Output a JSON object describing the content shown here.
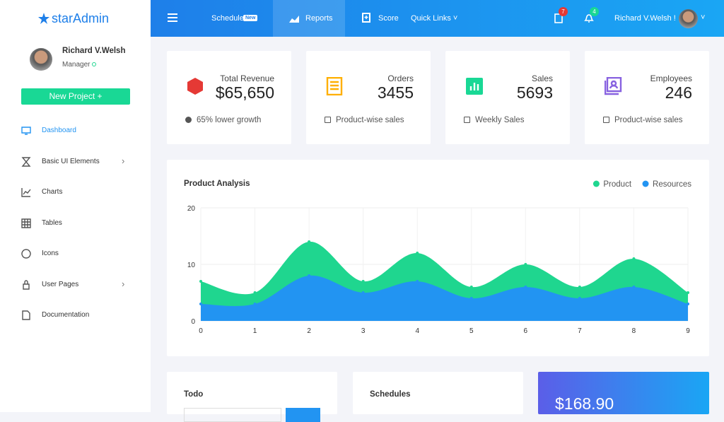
{
  "brand": "starAdmin",
  "user": {
    "name": "Richard V.Welsh",
    "role": "Manager"
  },
  "sidebar": {
    "button": "New Project",
    "menu": [
      "Dashboard",
      "Basic UI Elements",
      "Charts",
      "Tables",
      "Icons",
      "User Pages",
      "Documentation"
    ]
  },
  "navbar": {
    "links": [
      "Schedule",
      "Reports",
      "Score",
      "Quick Links"
    ],
    "badge_new": "New",
    "notifications": [
      "7",
      "4"
    ],
    "user": "Richard V.Welsh !"
  },
  "stats": [
    {
      "title": "Total Revenue",
      "value": "$65,650",
      "footer": "65% lower growth"
    },
    {
      "title": "Orders",
      "value": "3455",
      "footer": "Product-wise sales"
    },
    {
      "title": "Sales",
      "value": "5693",
      "footer": "Weekly Sales"
    },
    {
      "title": "Employees",
      "value": "246",
      "footer": "Product-wise sales"
    }
  ],
  "chart_data": {
    "type": "area",
    "title": "Product Analysis",
    "x": [
      0,
      1,
      2,
      3,
      4,
      5,
      6,
      7,
      8,
      9
    ],
    "xlim": [
      0,
      9
    ],
    "xticks": [
      0,
      1,
      2,
      3,
      4,
      5,
      6,
      7,
      8,
      9
    ],
    "ylim": [
      0,
      20
    ],
    "yticks": [
      0,
      10,
      20
    ],
    "grid": true,
    "legend": "top-right",
    "series": [
      {
        "name": "Product",
        "color": "#1fd68f",
        "values": [
          7,
          5,
          14,
          7,
          12,
          6,
          10,
          6,
          11,
          5
        ]
      },
      {
        "name": "Resources",
        "color": "#2294f2",
        "values": [
          3,
          3,
          8,
          5,
          7,
          4,
          6,
          4,
          6,
          3
        ]
      }
    ]
  },
  "bottom_cards": {
    "todo": "Todo",
    "schedules": "Schedules",
    "amount": "$168.90"
  }
}
